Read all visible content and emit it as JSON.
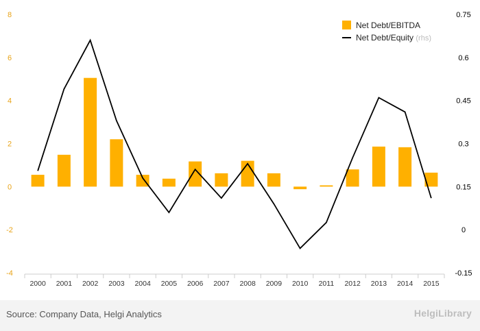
{
  "chart_data": {
    "type": "bar-line-combo",
    "categories": [
      "2000",
      "2001",
      "2002",
      "2003",
      "2004",
      "2005",
      "2006",
      "2007",
      "2008",
      "2009",
      "2010",
      "2011",
      "2012",
      "2013",
      "2014",
      "2015"
    ],
    "series": [
      {
        "name": "Net Debt/EBITDA",
        "type": "bar",
        "axis": "left",
        "values": [
          0.55,
          1.48,
          5.05,
          2.2,
          0.55,
          0.37,
          1.17,
          0.62,
          1.2,
          0.62,
          -0.12,
          0.06,
          0.8,
          1.86,
          1.83,
          0.65
        ]
      },
      {
        "name": "Net Debt/Equity",
        "name_suffix": "(rhs)",
        "type": "line",
        "axis": "right",
        "values": [
          0.205,
          0.49,
          0.66,
          0.38,
          0.18,
          0.06,
          0.21,
          0.11,
          0.23,
          0.09,
          -0.065,
          0.025,
          0.25,
          0.46,
          0.41,
          0.11
        ]
      }
    ],
    "y_left": {
      "ticks": [
        "8",
        "6",
        "4",
        "2",
        "0",
        "-2",
        "-4"
      ],
      "ylim": [
        -4,
        8
      ]
    },
    "y_right": {
      "ticks": [
        "0.75",
        "0.6",
        "0.45",
        "0.3",
        "0.15",
        "0",
        "-0.15"
      ],
      "ylim": [
        -0.15,
        0.75
      ]
    },
    "legend_position": "top-right",
    "grid": false
  },
  "colors": {
    "bar": "#FFB000",
    "line": "#000000",
    "left_axis_text": "#E8A317",
    "right_axis_text": "#000000",
    "footer_text": "#555555"
  },
  "footer": {
    "source": "Source: Company Data, Helgi Analytics",
    "logo": "HelgiLibrary"
  }
}
